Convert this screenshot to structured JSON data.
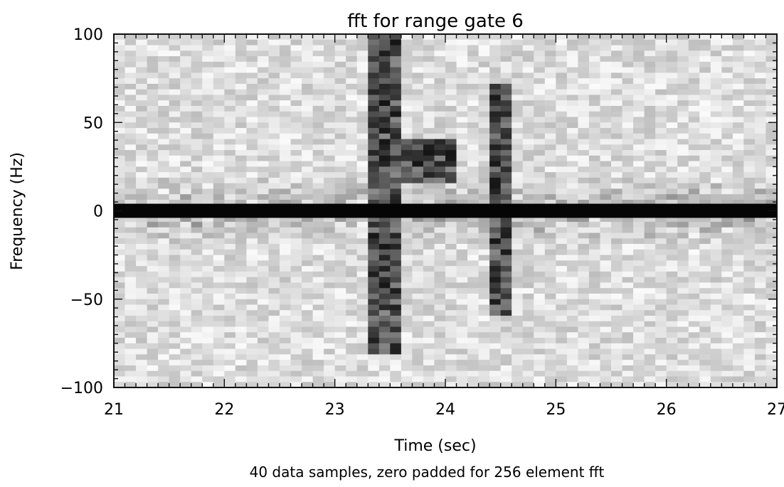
{
  "chart_data": {
    "type": "heatmap",
    "title": "fft for range gate  6",
    "xlabel": "Time (sec)",
    "ylabel": "Frequency (Hz)",
    "caption": "40 data samples, zero padded for  256 element fft",
    "xlim": [
      21,
      27
    ],
    "ylim": [
      -100,
      100
    ],
    "x_ticks": [
      21,
      22,
      23,
      24,
      25,
      26,
      27
    ],
    "x_tick_labels": [
      "21",
      "22",
      "23",
      "24",
      "25",
      "26",
      "27"
    ],
    "y_ticks": [
      -100,
      -50,
      0,
      50,
      100
    ],
    "y_tick_labels": [
      "−100",
      "−50",
      "0",
      "50",
      "100"
    ],
    "grid": false,
    "colormap": "grayscale (dark = high magnitude)",
    "features": [
      {
        "description": "strong constant DC band",
        "x": [
          21,
          27
        ],
        "y": [
          -3,
          3
        ]
      },
      {
        "description": "broadband vertical streak",
        "x": [
          23.35,
          23.55
        ],
        "y": [
          -82,
          100
        ]
      },
      {
        "description": "broadband vertical streak",
        "x": [
          24.45,
          24.6
        ],
        "y": [
          -60,
          72
        ]
      },
      {
        "description": "dark patches",
        "x": [
          23.5,
          24.1
        ],
        "y": [
          15,
          40
        ]
      }
    ]
  }
}
